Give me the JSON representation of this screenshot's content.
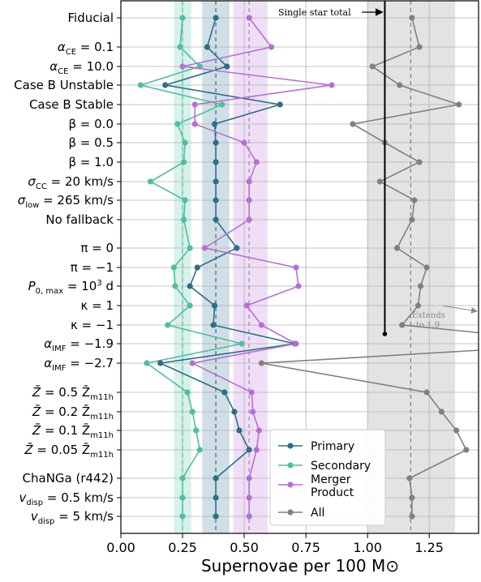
{
  "chart_data": {
    "type": "line",
    "orientation": "horizontal",
    "xlabel": "Supernovae per 100 M⊙",
    "xlim": [
      0.0,
      1.45
    ],
    "xticks": [
      0.0,
      0.25,
      0.5,
      0.75,
      1.0,
      1.25
    ],
    "xtick_labels": [
      "0.00",
      "0.25",
      "0.50",
      "0.75",
      "1.00",
      "1.25"
    ],
    "grid": "horizontal lines at each category, vertical lines at x ticks",
    "legend_placement": "bottom-center",
    "categories": [
      {
        "label": "Fiducial",
        "type": "text"
      },
      {
        "label": "",
        "type": "math",
        "base": "α",
        "sub": "CE",
        "rest": " = 0.1"
      },
      {
        "label": "",
        "type": "math",
        "base": "α",
        "sub": "CE",
        "rest": " = 10.0"
      },
      {
        "label": "Case B Unstable",
        "type": "text"
      },
      {
        "label": "Case B Stable",
        "type": "text"
      },
      {
        "label": "β = 0.0",
        "type": "text"
      },
      {
        "label": "β = 0.5",
        "type": "text"
      },
      {
        "label": "β = 1.0",
        "type": "text"
      },
      {
        "label": "",
        "type": "math",
        "base": "σ",
        "sub": "CC",
        "rest": " = 20 km/s"
      },
      {
        "label": "",
        "type": "math",
        "base": "σ",
        "sub": "low",
        "rest": " = 265 km/s"
      },
      {
        "label": "No fallback",
        "type": "text"
      },
      {
        "label": "π = 0",
        "type": "text"
      },
      {
        "label": "π = −1",
        "type": "text"
      },
      {
        "label": "",
        "type": "math",
        "base": "P",
        "sub": "0, max",
        "rest": " = 10",
        "sup": "3",
        "tail": " d"
      },
      {
        "label": "κ = 1",
        "type": "text"
      },
      {
        "label": "κ = −1",
        "type": "text"
      },
      {
        "label": "",
        "type": "math",
        "base": "α",
        "sub": "IMF",
        "rest": " = −1.9"
      },
      {
        "label": "",
        "type": "math",
        "base": "α",
        "sub": "IMF",
        "rest": " = −2.7"
      },
      {
        "label": "",
        "type": "math",
        "base": "Z̄",
        "sub": "",
        "rest": " = 0.5 Z̄",
        "sub2": "m11h"
      },
      {
        "label": "",
        "type": "math",
        "base": "Z̄",
        "sub": "",
        "rest": " = 0.2 Z̄",
        "sub2": "m11h"
      },
      {
        "label": "",
        "type": "math",
        "base": "Z̄",
        "sub": "",
        "rest": " = 0.1 Z̄",
        "sub2": "m11h"
      },
      {
        "label": "",
        "type": "math",
        "base": "Z̄",
        "sub": "",
        "rest": " = 0.05 Z̄",
        "sub2": "m11h"
      },
      {
        "label": "ChaNGa (r442)",
        "type": "text"
      },
      {
        "label": "",
        "type": "math",
        "base": "v",
        "sub": "disp",
        "rest": " = 0.5 km/s"
      },
      {
        "label": "",
        "type": "math",
        "base": "v",
        "sub": "disp",
        "rest": " = 5 km/s"
      }
    ],
    "series": [
      {
        "name": "Primary",
        "color": "#2a6f8a",
        "values": [
          0.385,
          0.35,
          0.43,
          0.18,
          0.645,
          0.38,
          0.385,
          0.385,
          0.385,
          0.385,
          0.385,
          0.47,
          0.31,
          0.28,
          0.38,
          0.375,
          0.705,
          0.16,
          0.42,
          0.46,
          0.48,
          0.52,
          0.385,
          0.385,
          0.385
        ],
        "fiducial": 0.385,
        "band": [
          0.33,
          0.44
        ]
      },
      {
        "name": "Secondary",
        "color": "#4dbf9e",
        "values": [
          0.25,
          0.24,
          0.32,
          0.08,
          0.41,
          0.23,
          0.26,
          0.255,
          0.12,
          0.26,
          0.255,
          0.28,
          0.215,
          0.22,
          0.28,
          0.19,
          0.49,
          0.105,
          0.27,
          0.29,
          0.305,
          0.32,
          0.25,
          0.25,
          0.25
        ],
        "fiducial": 0.25,
        "band": [
          0.215,
          0.285
        ]
      },
      {
        "name": "Merger Product",
        "color": "#b56fd6",
        "values": [
          0.52,
          0.61,
          0.25,
          0.855,
          0.3,
          0.3,
          0.5,
          0.55,
          0.52,
          0.52,
          0.52,
          0.34,
          0.71,
          0.72,
          0.51,
          0.57,
          0.71,
          0.29,
          0.53,
          0.535,
          0.56,
          0.55,
          0.52,
          0.52,
          0.52
        ],
        "fiducial": 0.52,
        "band": [
          0.455,
          0.595
        ]
      },
      {
        "name": "All",
        "color": "#808080",
        "values": [
          1.18,
          1.21,
          1.02,
          1.13,
          1.37,
          0.94,
          1.07,
          1.21,
          1.05,
          1.19,
          1.18,
          1.12,
          1.24,
          1.215,
          1.205,
          1.14,
          1.9,
          0.57,
          1.24,
          1.3,
          1.36,
          1.4,
          1.17,
          1.18,
          1.18
        ],
        "fiducial": 1.175,
        "band": [
          1.0,
          1.355
        ]
      }
    ],
    "annotations": {
      "single_star_total": {
        "text": "Single star total",
        "value": 1.07
      },
      "extends": {
        "text_line1": "Extends",
        "text_line2": "to 1.9"
      }
    }
  }
}
